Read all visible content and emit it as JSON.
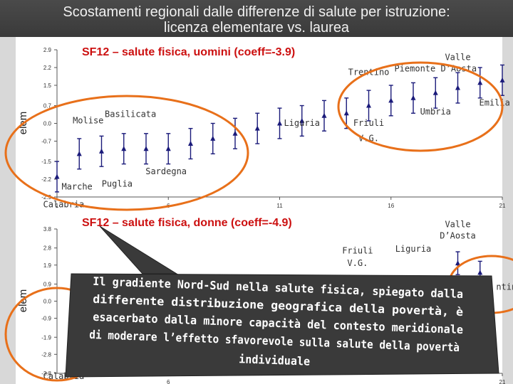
{
  "slide": {
    "title_line_1": "Scostamenti regionali dalle differenze di salute per istruzione:",
    "title_line_2": "licenza elementare vs. laurea"
  },
  "callout": {
    "lines": [
      "Il gradiente Nord-Sud nella salute fisica, spiegato dalla",
      "differente distribuzione geografica della povertà, è",
      "esacerbato dalla minore capacità del contesto meridionale",
      "di moderare l’effetto sfavorevole sulla salute della povertà",
      "individuale"
    ]
  },
  "colors": {
    "title_bg": "#3f3f3f",
    "accent_orange": "#e8701a",
    "marker": "#1a1a7a",
    "bubble": "#3a3a3a"
  },
  "chart_data": [
    {
      "type": "scatter",
      "title": "SF12 – salute fisica, uomini (coeff=-3.9)",
      "ylabel": "elem",
      "xlabel": "",
      "ylim": [
        -2.9,
        2.9
      ],
      "yticks": [
        "2.9",
        "2.2",
        "1.5",
        "0.7",
        "0.0",
        "-0.7",
        "-1.5",
        "-2.2",
        "-2.9"
      ],
      "ytick_values": [
        2.9,
        2.2,
        1.5,
        0.7,
        0.0,
        -0.7,
        -1.5,
        -2.2,
        -2.9
      ],
      "xlim": [
        1,
        21
      ],
      "xticks": [
        "1",
        "6",
        "11",
        "16",
        "21"
      ],
      "xtick_values": [
        1,
        6,
        11,
        16,
        21
      ],
      "grid": false,
      "points": [
        {
          "x": 1,
          "y": -2.1,
          "lo": -2.7,
          "hi": -1.5
        },
        {
          "x": 2,
          "y": -1.2,
          "lo": -1.8,
          "hi": -0.6
        },
        {
          "x": 3,
          "y": -1.1,
          "lo": -1.7,
          "hi": -0.5
        },
        {
          "x": 4,
          "y": -1.0,
          "lo": -1.6,
          "hi": -0.4
        },
        {
          "x": 5,
          "y": -1.0,
          "lo": -1.6,
          "hi": -0.4
        },
        {
          "x": 6,
          "y": -1.0,
          "lo": -1.6,
          "hi": -0.4
        },
        {
          "x": 7,
          "y": -0.8,
          "lo": -1.4,
          "hi": -0.2
        },
        {
          "x": 8,
          "y": -0.6,
          "lo": -1.2,
          "hi": 0.0
        },
        {
          "x": 9,
          "y": -0.4,
          "lo": -1.0,
          "hi": 0.2
        },
        {
          "x": 10,
          "y": -0.2,
          "lo": -0.8,
          "hi": 0.4
        },
        {
          "x": 11,
          "y": 0.0,
          "lo": -0.6,
          "hi": 0.6
        },
        {
          "x": 12,
          "y": 0.1,
          "lo": -0.5,
          "hi": 0.7
        },
        {
          "x": 13,
          "y": 0.3,
          "lo": -0.3,
          "hi": 0.9
        },
        {
          "x": 14,
          "y": 0.4,
          "lo": -0.2,
          "hi": 1.0
        },
        {
          "x": 15,
          "y": 0.7,
          "lo": 0.1,
          "hi": 1.3
        },
        {
          "x": 16,
          "y": 0.9,
          "lo": 0.3,
          "hi": 1.5
        },
        {
          "x": 17,
          "y": 1.0,
          "lo": 0.4,
          "hi": 1.6
        },
        {
          "x": 18,
          "y": 1.2,
          "lo": 0.6,
          "hi": 1.8
        },
        {
          "x": 19,
          "y": 1.4,
          "lo": 0.8,
          "hi": 2.0
        },
        {
          "x": 20,
          "y": 1.6,
          "lo": 1.0,
          "hi": 2.2
        },
        {
          "x": 21,
          "y": 1.7,
          "lo": 1.1,
          "hi": 2.3
        }
      ],
      "annotations": [
        {
          "text": "Valle",
          "x": 19,
          "y": 2.5
        },
        {
          "text": "Piemonte D’Aosta",
          "x": 18,
          "y": 2.05
        },
        {
          "text": "Trentino",
          "x": 15,
          "y": 1.9
        },
        {
          "text": "Emilia R.",
          "x": 21,
          "y": 0.7
        },
        {
          "text": "Umbria",
          "x": 18,
          "y": 0.35
        },
        {
          "text": "Friuli",
          "x": 15,
          "y": -0.1
        },
        {
          "text": "V.G.",
          "x": 15,
          "y": -0.7
        },
        {
          "text": "Liguria",
          "x": 12,
          "y": -0.1
        },
        {
          "text": "Basilicata",
          "x": 4.3,
          "y": 0.25
        },
        {
          "text": "Molise",
          "x": 2.4,
          "y": 0.0
        },
        {
          "text": "Sardegna",
          "x": 5.9,
          "y": -2.0
        },
        {
          "text": "Marche",
          "x": 1.9,
          "y": -2.6
        },
        {
          "text": "Puglia",
          "x": 3.7,
          "y": -2.5
        },
        {
          "text": "Calabria",
          "x": 1.3,
          "y": -3.3
        }
      ]
    },
    {
      "type": "scatter",
      "title": "SF12 – salute fisica, donne (coeff=-4.9)",
      "ylabel": "elem",
      "xlabel": "",
      "ylim": [
        -3.8,
        3.8
      ],
      "yticks": [
        "3.8",
        "2.8",
        "1.9",
        "0.9",
        "0.0",
        "-0.9",
        "-1.9",
        "-2.8",
        "-3.8"
      ],
      "ytick_values": [
        3.8,
        2.8,
        1.9,
        0.9,
        0.0,
        -0.9,
        -1.9,
        -2.8,
        -3.8
      ],
      "xlim": [
        1,
        21
      ],
      "xticks": [
        "6",
        "21"
      ],
      "xtick_values": [
        6,
        21
      ],
      "grid": false,
      "points": [
        {
          "x": 19,
          "y": 2.0,
          "lo": 1.4,
          "hi": 2.6
        },
        {
          "x": 20,
          "y": 1.5,
          "lo": 0.9,
          "hi": 2.1
        }
      ],
      "annotations": [
        {
          "text": "Valle",
          "x": 19,
          "y": 3.9
        },
        {
          "text": "D’Aosta",
          "x": 19,
          "y": 3.3
        },
        {
          "text": "Liguria",
          "x": 17,
          "y": 2.6
        },
        {
          "text": "Friuli",
          "x": 14.5,
          "y": 2.5
        },
        {
          "text": "V.G.",
          "x": 14.5,
          "y": 1.85
        },
        {
          "text": "ntino",
          "x": 21.3,
          "y": 0.6
        },
        {
          "text": "Calabria",
          "x": 1.3,
          "y": -4.1
        }
      ]
    }
  ]
}
